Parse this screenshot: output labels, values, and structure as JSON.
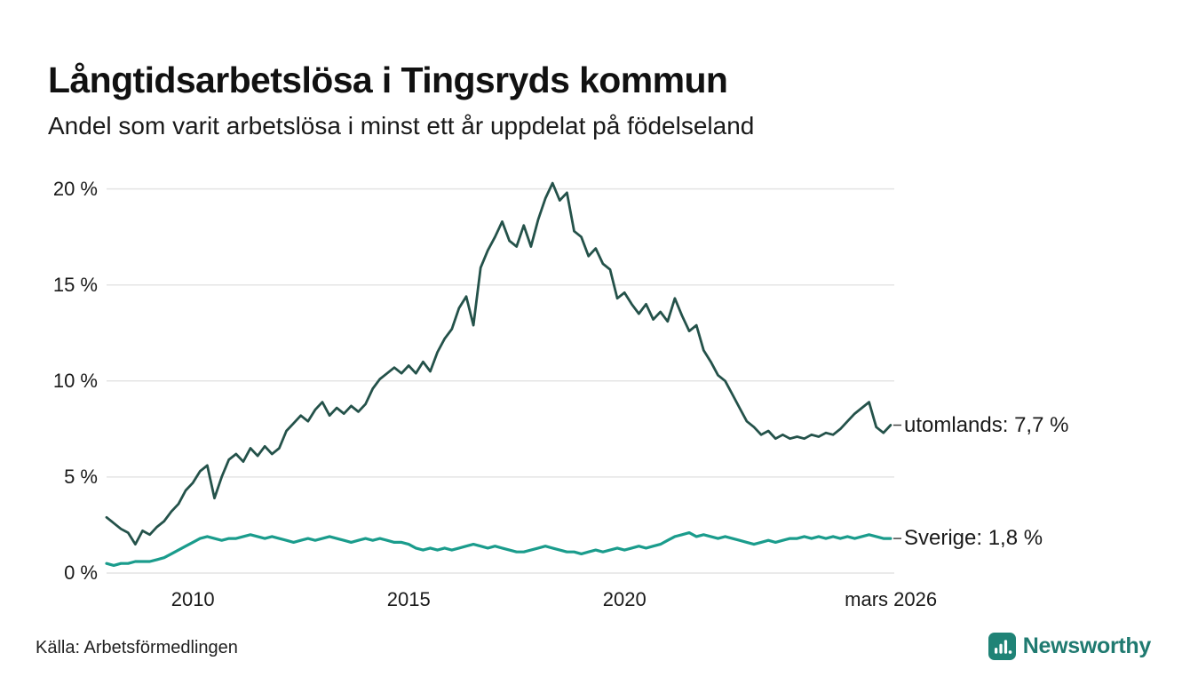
{
  "header": {
    "title": "Långtidsarbetslösa i Tingsryds kommun",
    "subtitle": "Andel som varit arbetslösa i minst ett år uppdelat på födelseland"
  },
  "footer": {
    "source": "Källa: Arbetsförmedlingen",
    "brand": "Newsworthy"
  },
  "brand_colors": {
    "logo_background": "#1f8376",
    "wordmark": "#1f7a70"
  },
  "chart_data": {
    "type": "line",
    "title": "Långtidsarbetslösa i Tingsryds kommun",
    "subtitle": "Andel som varit arbetslösa i minst ett år uppdelat på födelseland",
    "unit": "%",
    "grid": true,
    "x_start": 2008.0,
    "x_step": 0.1666667,
    "xlim": [
      2008,
      2026.25
    ],
    "ylim": [
      0,
      21
    ],
    "ytick_values": [
      0,
      5,
      10,
      15,
      20
    ],
    "ytick_labels": [
      "0 %",
      "5 %",
      "10 %",
      "15 %",
      "20 %"
    ],
    "xtick_values": [
      2010,
      2015,
      2020,
      2026.17
    ],
    "xtick_labels": [
      "2010",
      "2015",
      "2020",
      "mars 2026"
    ],
    "legend_position": "right-end-labels",
    "series": [
      {
        "name": "utomlands",
        "label": "utomlands: 7,7 %",
        "color": "#24524a",
        "last_value": 7.7,
        "values": [
          2.9,
          2.6,
          2.3,
          2.1,
          1.5,
          2.2,
          2.0,
          2.4,
          2.7,
          3.2,
          3.6,
          4.3,
          4.7,
          5.3,
          5.6,
          3.9,
          5.0,
          5.9,
          6.2,
          5.8,
          6.5,
          6.1,
          6.6,
          6.2,
          6.5,
          7.4,
          7.8,
          8.2,
          7.9,
          8.5,
          8.9,
          8.2,
          8.6,
          8.3,
          8.7,
          8.4,
          8.8,
          9.6,
          10.1,
          10.4,
          10.7,
          10.4,
          10.8,
          10.4,
          11.0,
          10.5,
          11.5,
          12.2,
          12.7,
          13.8,
          14.4,
          12.9,
          15.9,
          16.8,
          17.5,
          18.3,
          17.3,
          17.0,
          18.1,
          17.0,
          18.4,
          19.5,
          20.3,
          19.4,
          19.8,
          17.8,
          17.5,
          16.5,
          16.9,
          16.1,
          15.8,
          14.3,
          14.6,
          14.0,
          13.5,
          14.0,
          13.2,
          13.6,
          13.1,
          14.3,
          13.4,
          12.6,
          12.9,
          11.6,
          11.0,
          10.3,
          10.0,
          9.3,
          8.6,
          7.9,
          7.6,
          7.2,
          7.4,
          7.0,
          7.2,
          7.0,
          7.1,
          7.0,
          7.2,
          7.1,
          7.3,
          7.2,
          7.5,
          7.9,
          8.3,
          8.6,
          8.9,
          7.6,
          7.3,
          7.7
        ]
      },
      {
        "name": "Sverige",
        "label": "Sverige: 1,8 %",
        "color": "#1a9c8c",
        "last_value": 1.8,
        "values": [
          0.5,
          0.4,
          0.5,
          0.5,
          0.6,
          0.6,
          0.6,
          0.7,
          0.8,
          1.0,
          1.2,
          1.4,
          1.6,
          1.8,
          1.9,
          1.8,
          1.7,
          1.8,
          1.8,
          1.9,
          2.0,
          1.9,
          1.8,
          1.9,
          1.8,
          1.7,
          1.6,
          1.7,
          1.8,
          1.7,
          1.8,
          1.9,
          1.8,
          1.7,
          1.6,
          1.7,
          1.8,
          1.7,
          1.8,
          1.7,
          1.6,
          1.6,
          1.5,
          1.3,
          1.2,
          1.3,
          1.2,
          1.3,
          1.2,
          1.3,
          1.4,
          1.5,
          1.4,
          1.3,
          1.4,
          1.3,
          1.2,
          1.1,
          1.1,
          1.2,
          1.3,
          1.4,
          1.3,
          1.2,
          1.1,
          1.1,
          1.0,
          1.1,
          1.2,
          1.1,
          1.2,
          1.3,
          1.2,
          1.3,
          1.4,
          1.3,
          1.4,
          1.5,
          1.7,
          1.9,
          2.0,
          2.1,
          1.9,
          2.0,
          1.9,
          1.8,
          1.9,
          1.8,
          1.7,
          1.6,
          1.5,
          1.6,
          1.7,
          1.6,
          1.7,
          1.8,
          1.8,
          1.9,
          1.8,
          1.9,
          1.8,
          1.9,
          1.8,
          1.9,
          1.8,
          1.9,
          2.0,
          1.9,
          1.8,
          1.8
        ]
      }
    ]
  }
}
